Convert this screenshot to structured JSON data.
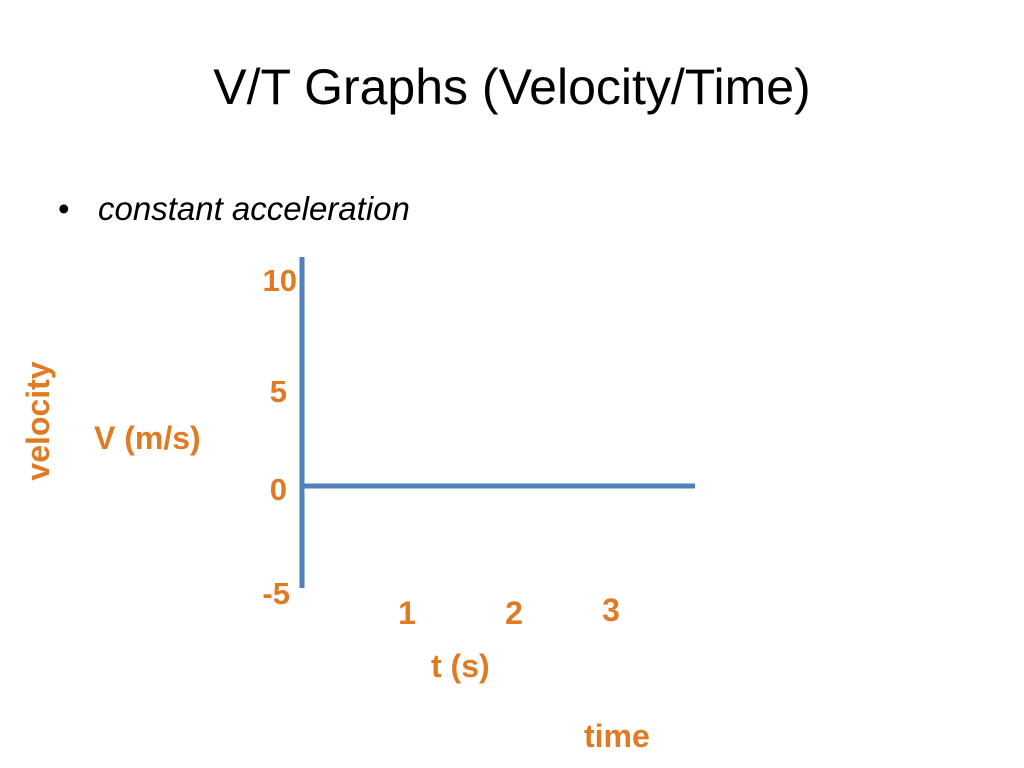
{
  "slide": {
    "title": "V/T Graphs (Velocity/Time)",
    "bullet": {
      "symbol": "•",
      "text": "constant acceleration"
    }
  },
  "chart_data": {
    "type": "line",
    "series": [],
    "y_ticks": [
      "10",
      "5",
      "0",
      "-5"
    ],
    "x_ticks": [
      "1",
      "2",
      "3"
    ],
    "xlabel": "t (s)",
    "ylabel": "V (m/s)",
    "x_annotation": "time",
    "y_annotation": "velocity",
    "ylim": [
      -5,
      10
    ],
    "xlim": [
      0,
      3.6
    ],
    "grid": false
  },
  "colors": {
    "axis": "#4F81BD",
    "label": "#E07B23",
    "text": "#000000"
  }
}
